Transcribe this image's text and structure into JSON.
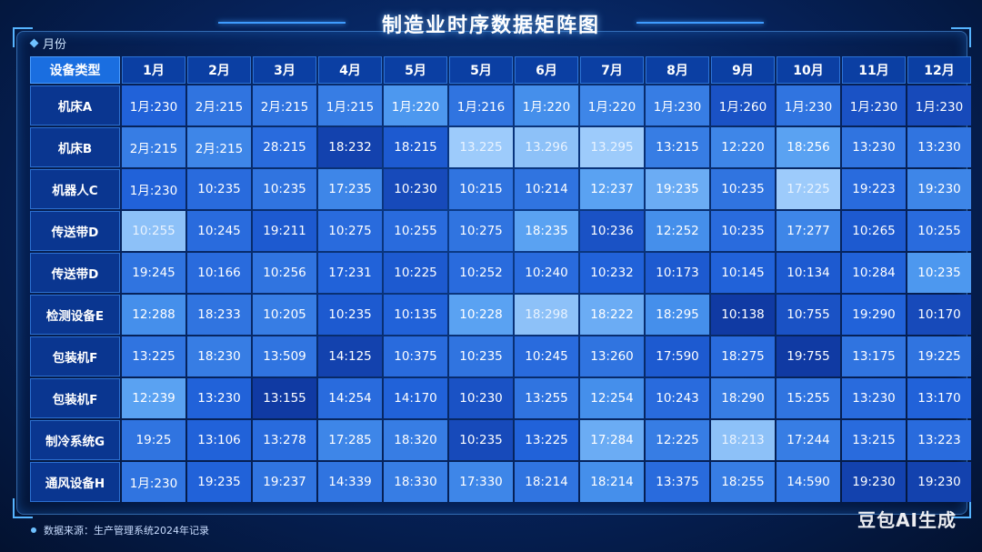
{
  "title": "制造业时序数据矩阵图",
  "section_tag": "月份",
  "source": "数据来源：生产管理系统2024年记录",
  "watermark": "豆包AI生成",
  "colors": {
    "header_bg": "#0b3fa3",
    "corner_bg": "#1a6ee0",
    "cell_scale": [
      "#0a2a8c",
      "#1f5fd8",
      "#4f9bf0",
      "#bfe0ff"
    ]
  },
  "chart_data": {
    "type": "heatmap",
    "title": "制造业时序数据矩阵图",
    "corner_label": "设备类型",
    "columns": [
      "1月",
      "2月",
      "3月",
      "4月",
      "5月",
      "5月",
      "6月",
      "7月",
      "8月",
      "9月",
      "10月",
      "11月",
      "12月"
    ],
    "rows": [
      {
        "label": "机床A",
        "cells": [
          "1月:230",
          "2月:215",
          "2月:215",
          "1月:215",
          "1月:220",
          "1月:216",
          "1月:220",
          "1月:220",
          "1月:230",
          "1月:260",
          "1月:230",
          "1月:230",
          "1月:230"
        ],
        "intensity": [
          0.35,
          0.45,
          0.45,
          0.5,
          0.65,
          0.45,
          0.6,
          0.55,
          0.5,
          0.25,
          0.45,
          0.25,
          0.2
        ]
      },
      {
        "label": "机床B",
        "cells": [
          "2月:215",
          "2月:215",
          "28:215",
          "18:232",
          "18:215",
          "13.225",
          "13.296",
          "13.295",
          "13:215",
          "12:220",
          "18:256",
          "13:230",
          "13:230"
        ],
        "intensity": [
          0.5,
          0.55,
          0.4,
          0.15,
          0.3,
          0.9,
          0.85,
          0.9,
          0.5,
          0.55,
          0.7,
          0.45,
          0.45
        ]
      },
      {
        "label": "机器人C",
        "cells": [
          "1月:230",
          "10:235",
          "10:235",
          "17:235",
          "10:230",
          "10:215",
          "10:214",
          "12:237",
          "19:235",
          "10:235",
          "17:225",
          "19:223",
          "19:230"
        ],
        "intensity": [
          0.35,
          0.4,
          0.45,
          0.55,
          0.2,
          0.45,
          0.45,
          0.7,
          0.75,
          0.45,
          0.9,
          0.4,
          0.55
        ]
      },
      {
        "label": "传送带D",
        "cells": [
          "10:255",
          "10:245",
          "19:211",
          "10:275",
          "10:255",
          "10:275",
          "18:235",
          "10:236",
          "12:252",
          "10:235",
          "17:277",
          "10:265",
          "10:255"
        ],
        "intensity": [
          0.85,
          0.4,
          0.3,
          0.4,
          0.4,
          0.45,
          0.7,
          0.25,
          0.6,
          0.4,
          0.55,
          0.3,
          0.4
        ]
      },
      {
        "label": "传送带D",
        "cells": [
          "19:245",
          "10:166",
          "10:256",
          "17:231",
          "10:225",
          "10:252",
          "10:240",
          "10:232",
          "10:173",
          "10:145",
          "10:134",
          "10:284",
          "10:235"
        ],
        "intensity": [
          0.45,
          0.4,
          0.45,
          0.35,
          0.3,
          0.4,
          0.4,
          0.35,
          0.3,
          0.35,
          0.3,
          0.35,
          0.65
        ]
      },
      {
        "label": "检测设备E",
        "cells": [
          "12:288",
          "18:233",
          "10:205",
          "10:235",
          "10:135",
          "10:228",
          "18:298",
          "18:222",
          "18:295",
          "10:138",
          "10:755",
          "19:290",
          "10:170"
        ],
        "intensity": [
          0.6,
          0.45,
          0.5,
          0.3,
          0.35,
          0.7,
          0.85,
          0.75,
          0.6,
          0.1,
          0.25,
          0.35,
          0.2
        ]
      },
      {
        "label": "包装机F",
        "cells": [
          "13:225",
          "18:230",
          "13:509",
          "14:125",
          "10:375",
          "10:235",
          "10:245",
          "13:260",
          "17:590",
          "18:275",
          "19:755",
          "13:175",
          "19:225"
        ],
        "intensity": [
          0.45,
          0.5,
          0.45,
          0.15,
          0.4,
          0.45,
          0.4,
          0.45,
          0.3,
          0.4,
          0.1,
          0.45,
          0.45
        ]
      },
      {
        "label": "包装机F",
        "cells": [
          "12:239",
          "13:230",
          "13:155",
          "14:254",
          "14:170",
          "10:230",
          "13:255",
          "12:254",
          "10:243",
          "18:290",
          "15:255",
          "13:230",
          "13:170"
        ],
        "intensity": [
          0.7,
          0.35,
          0.1,
          0.4,
          0.35,
          0.25,
          0.45,
          0.6,
          0.4,
          0.5,
          0.45,
          0.4,
          0.35
        ]
      },
      {
        "label": "制冷系统G",
        "cells": [
          "19:25",
          "13:106",
          "13:278",
          "17:285",
          "18:320",
          "10:235",
          "13:225",
          "17:284",
          "12:225",
          "18:213",
          "17:244",
          "13:215",
          "13:223"
        ],
        "intensity": [
          0.45,
          0.35,
          0.4,
          0.55,
          0.5,
          0.2,
          0.35,
          0.75,
          0.5,
          0.85,
          0.5,
          0.4,
          0.4
        ]
      },
      {
        "label": "通风设备H",
        "cells": [
          "1月:230",
          "19:235",
          "19:237",
          "14:339",
          "18:330",
          "17:330",
          "18:214",
          "18:214",
          "13:375",
          "18:255",
          "14:590",
          "19:230",
          "19:230"
        ],
        "intensity": [
          0.45,
          0.35,
          0.45,
          0.45,
          0.5,
          0.55,
          0.45,
          0.6,
          0.4,
          0.5,
          0.45,
          0.15,
          0.15
        ]
      }
    ]
  }
}
